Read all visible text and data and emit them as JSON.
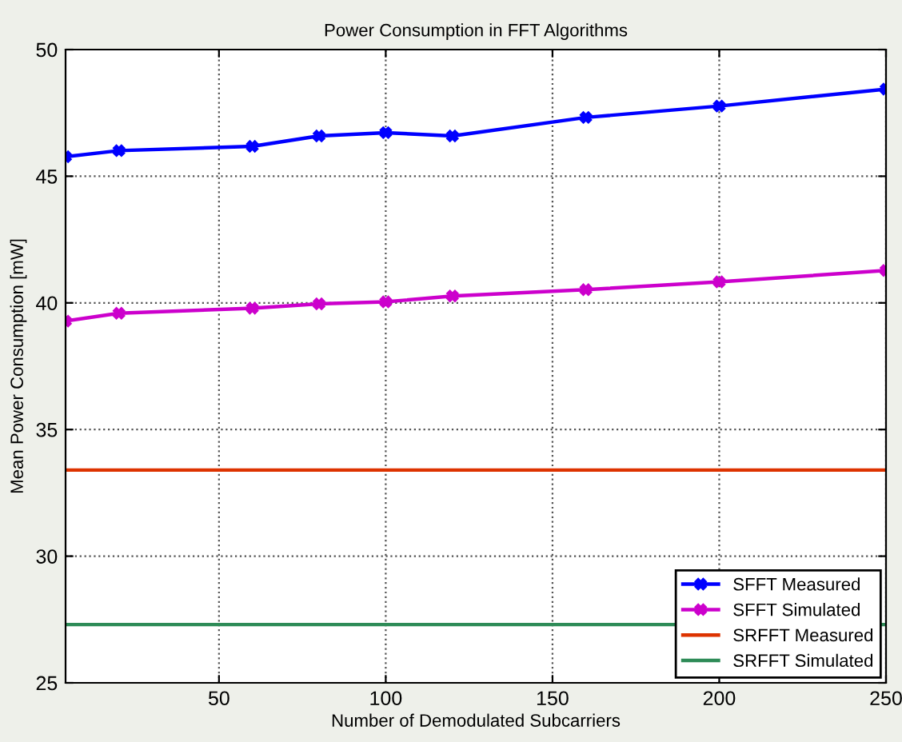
{
  "chart_data": {
    "type": "line",
    "title": "Power Consumption in FFT Algorithms",
    "xlabel": "Number of Demodulated Subcarriers",
    "ylabel": "Mean Power Consumption [mW]",
    "x": [
      4,
      20,
      60,
      80,
      100,
      120,
      160,
      200,
      250
    ],
    "series": [
      {
        "name": "SFFT Measured",
        "color": "#0000ff",
        "marker": "cross",
        "values": [
          45.77,
          46.01,
          46.18,
          46.59,
          46.72,
          46.59,
          47.32,
          47.77,
          48.44
        ]
      },
      {
        "name": "SFFT Simulated",
        "color": "#cc00cc",
        "marker": "cross",
        "values": [
          39.28,
          39.59,
          39.79,
          39.96,
          40.04,
          40.27,
          40.52,
          40.83,
          41.28
        ]
      }
    ],
    "ref_lines": [
      {
        "axis": "y",
        "value": 33.4,
        "label": "SRFFT Measured",
        "color": "#dd3300",
        "line_style": "solid"
      },
      {
        "axis": "y",
        "value": 27.3,
        "label": "SRFFT Simulated",
        "color": "#2e8b57",
        "line_style": "solid"
      }
    ],
    "xlim": [
      4,
      250
    ],
    "xticks": [
      50,
      100,
      150,
      200,
      250
    ],
    "ylim": [
      25,
      50
    ],
    "yticks": [
      25,
      30,
      35,
      40,
      45,
      50
    ],
    "grid": true,
    "legend": "bottom right",
    "line_style": "solid"
  }
}
